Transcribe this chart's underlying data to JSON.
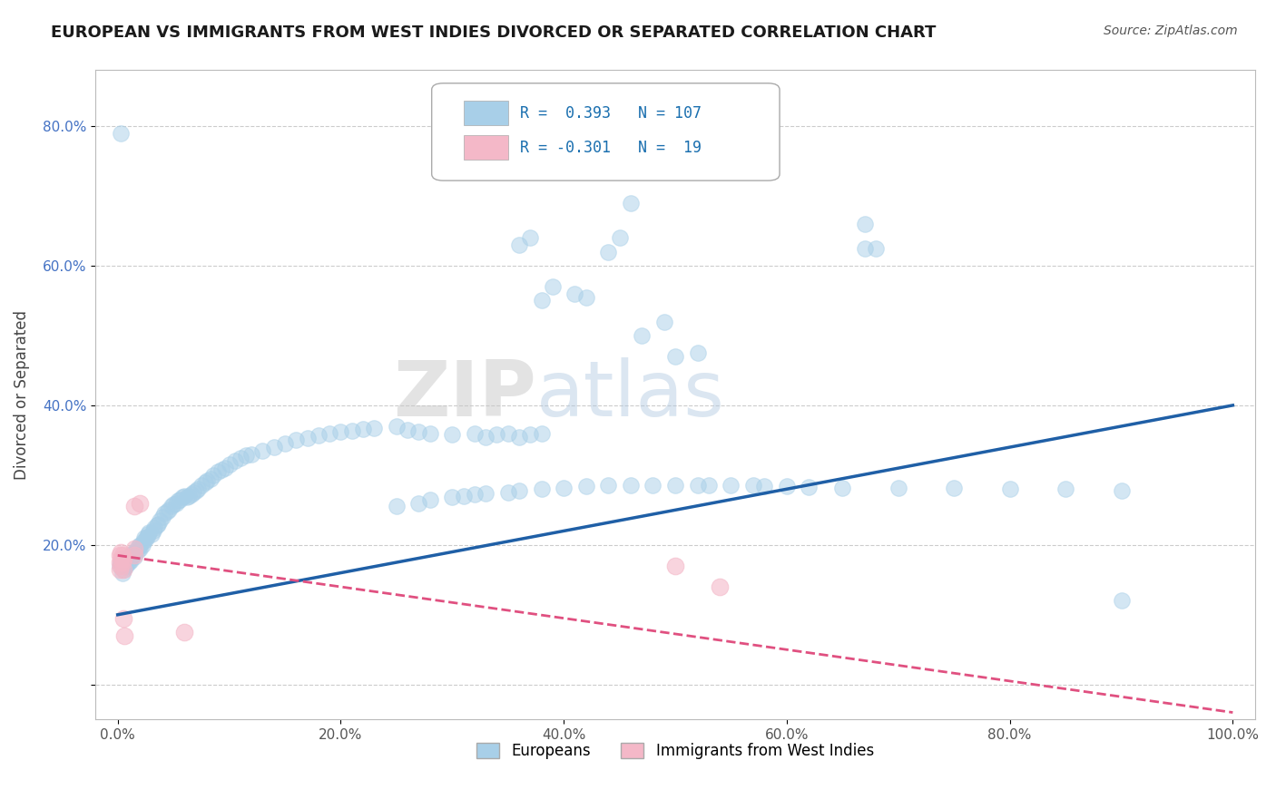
{
  "title": "EUROPEAN VS IMMIGRANTS FROM WEST INDIES DIVORCED OR SEPARATED CORRELATION CHART",
  "source": "Source: ZipAtlas.com",
  "ylabel": "Divorced or Separated",
  "xlim": [
    -0.02,
    1.02
  ],
  "ylim": [
    -0.05,
    0.88
  ],
  "xticks": [
    0.0,
    0.2,
    0.4,
    0.6,
    0.8,
    1.0
  ],
  "xtick_labels": [
    "0.0%",
    "20.0%",
    "40.0%",
    "60.0%",
    "80.0%",
    "100.0%"
  ],
  "yticks": [
    0.0,
    0.2,
    0.4,
    0.6,
    0.8
  ],
  "ytick_labels": [
    "",
    "20.0%",
    "40.0%",
    "60.0%",
    "80.0%"
  ],
  "grid_color": "#cccccc",
  "background_color": "#ffffff",
  "watermark_zip": "ZIP",
  "watermark_atlas": "atlas",
  "blue_color": "#a8cfe8",
  "pink_color": "#f4b8c8",
  "blue_line_color": "#1f5fa6",
  "pink_line_color": "#e05080",
  "blue_scatter": [
    [
      0.002,
      0.17
    ],
    [
      0.003,
      0.175
    ],
    [
      0.004,
      0.16
    ],
    [
      0.005,
      0.18
    ],
    [
      0.005,
      0.165
    ],
    [
      0.006,
      0.17
    ],
    [
      0.007,
      0.175
    ],
    [
      0.007,
      0.168
    ],
    [
      0.008,
      0.18
    ],
    [
      0.008,
      0.172
    ],
    [
      0.009,
      0.178
    ],
    [
      0.01,
      0.175
    ],
    [
      0.01,
      0.182
    ],
    [
      0.011,
      0.18
    ],
    [
      0.012,
      0.185
    ],
    [
      0.012,
      0.178
    ],
    [
      0.013,
      0.188
    ],
    [
      0.014,
      0.185
    ],
    [
      0.015,
      0.19
    ],
    [
      0.015,
      0.183
    ],
    [
      0.016,
      0.19
    ],
    [
      0.017,
      0.195
    ],
    [
      0.018,
      0.192
    ],
    [
      0.019,
      0.198
    ],
    [
      0.02,
      0.195
    ],
    [
      0.02,
      0.2
    ],
    [
      0.022,
      0.2
    ],
    [
      0.023,
      0.205
    ],
    [
      0.024,
      0.21
    ],
    [
      0.025,
      0.208
    ],
    [
      0.026,
      0.212
    ],
    [
      0.027,
      0.215
    ],
    [
      0.028,
      0.218
    ],
    [
      0.03,
      0.215
    ],
    [
      0.032,
      0.22
    ],
    [
      0.033,
      0.225
    ],
    [
      0.035,
      0.228
    ],
    [
      0.036,
      0.23
    ],
    [
      0.038,
      0.235
    ],
    [
      0.04,
      0.24
    ],
    [
      0.042,
      0.245
    ],
    [
      0.044,
      0.248
    ],
    [
      0.046,
      0.25
    ],
    [
      0.048,
      0.255
    ],
    [
      0.05,
      0.258
    ],
    [
      0.052,
      0.26
    ],
    [
      0.054,
      0.263
    ],
    [
      0.056,
      0.265
    ],
    [
      0.058,
      0.268
    ],
    [
      0.06,
      0.27
    ],
    [
      0.062,
      0.268
    ],
    [
      0.064,
      0.27
    ],
    [
      0.066,
      0.272
    ],
    [
      0.068,
      0.275
    ],
    [
      0.07,
      0.278
    ],
    [
      0.072,
      0.28
    ],
    [
      0.075,
      0.285
    ],
    [
      0.078,
      0.29
    ],
    [
      0.08,
      0.292
    ],
    [
      0.083,
      0.295
    ],
    [
      0.086,
      0.3
    ],
    [
      0.09,
      0.305
    ],
    [
      0.093,
      0.308
    ],
    [
      0.096,
      0.31
    ],
    [
      0.1,
      0.315
    ],
    [
      0.105,
      0.32
    ],
    [
      0.11,
      0.325
    ],
    [
      0.115,
      0.328
    ],
    [
      0.12,
      0.33
    ],
    [
      0.13,
      0.335
    ],
    [
      0.14,
      0.34
    ],
    [
      0.15,
      0.345
    ],
    [
      0.16,
      0.35
    ],
    [
      0.17,
      0.353
    ],
    [
      0.18,
      0.357
    ],
    [
      0.19,
      0.36
    ],
    [
      0.2,
      0.362
    ],
    [
      0.21,
      0.364
    ],
    [
      0.22,
      0.366
    ],
    [
      0.23,
      0.368
    ],
    [
      0.25,
      0.37
    ],
    [
      0.26,
      0.365
    ],
    [
      0.27,
      0.362
    ],
    [
      0.28,
      0.36
    ],
    [
      0.3,
      0.358
    ],
    [
      0.32,
      0.36
    ],
    [
      0.33,
      0.355
    ],
    [
      0.34,
      0.358
    ],
    [
      0.35,
      0.36
    ],
    [
      0.36,
      0.355
    ],
    [
      0.37,
      0.358
    ],
    [
      0.38,
      0.36
    ],
    [
      0.25,
      0.255
    ],
    [
      0.27,
      0.26
    ],
    [
      0.28,
      0.265
    ],
    [
      0.3,
      0.268
    ],
    [
      0.31,
      0.27
    ],
    [
      0.32,
      0.272
    ],
    [
      0.33,
      0.274
    ],
    [
      0.35,
      0.275
    ],
    [
      0.36,
      0.278
    ],
    [
      0.38,
      0.28
    ],
    [
      0.4,
      0.282
    ],
    [
      0.42,
      0.284
    ],
    [
      0.44,
      0.285
    ],
    [
      0.46,
      0.285
    ],
    [
      0.48,
      0.285
    ],
    [
      0.5,
      0.285
    ],
    [
      0.52,
      0.286
    ],
    [
      0.53,
      0.285
    ],
    [
      0.55,
      0.285
    ],
    [
      0.57,
      0.285
    ],
    [
      0.58,
      0.284
    ],
    [
      0.6,
      0.284
    ],
    [
      0.62,
      0.283
    ],
    [
      0.65,
      0.282
    ],
    [
      0.7,
      0.282
    ],
    [
      0.75,
      0.282
    ],
    [
      0.8,
      0.28
    ],
    [
      0.85,
      0.28
    ],
    [
      0.9,
      0.278
    ],
    [
      0.38,
      0.55
    ],
    [
      0.39,
      0.57
    ],
    [
      0.41,
      0.56
    ],
    [
      0.42,
      0.555
    ],
    [
      0.36,
      0.63
    ],
    [
      0.37,
      0.64
    ],
    [
      0.44,
      0.62
    ],
    [
      0.45,
      0.64
    ],
    [
      0.47,
      0.5
    ],
    [
      0.49,
      0.52
    ],
    [
      0.5,
      0.47
    ],
    [
      0.52,
      0.475
    ],
    [
      0.46,
      0.69
    ],
    [
      0.67,
      0.66
    ],
    [
      0.67,
      0.625
    ],
    [
      0.68,
      0.625
    ],
    [
      0.9,
      0.12
    ],
    [
      0.003,
      0.79
    ]
  ],
  "pink_scatter": [
    [
      0.002,
      0.175
    ],
    [
      0.002,
      0.185
    ],
    [
      0.002,
      0.165
    ],
    [
      0.003,
      0.18
    ],
    [
      0.003,
      0.19
    ],
    [
      0.003,
      0.17
    ],
    [
      0.004,
      0.175
    ],
    [
      0.004,
      0.185
    ],
    [
      0.005,
      0.18
    ],
    [
      0.005,
      0.165
    ],
    [
      0.015,
      0.195
    ],
    [
      0.015,
      0.185
    ],
    [
      0.015,
      0.255
    ],
    [
      0.02,
      0.26
    ],
    [
      0.006,
      0.07
    ],
    [
      0.5,
      0.17
    ],
    [
      0.54,
      0.14
    ],
    [
      0.06,
      0.075
    ],
    [
      0.005,
      0.095
    ]
  ],
  "blue_line_x": [
    0.0,
    1.0
  ],
  "blue_line_y": [
    0.1,
    0.4
  ],
  "pink_line_x": [
    0.0,
    1.0
  ],
  "pink_line_y": [
    0.185,
    -0.04
  ]
}
